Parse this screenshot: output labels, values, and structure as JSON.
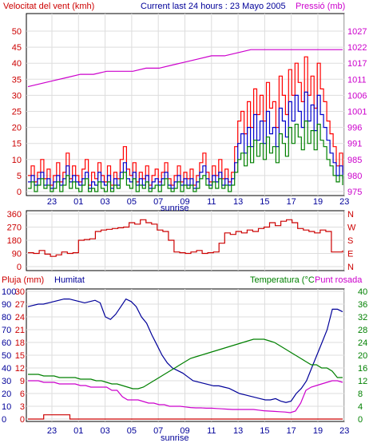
{
  "header": {
    "left_title": "Velocitat del vent (kmh)",
    "center_title": "Current last 24 hours : 23 Mayo 2005",
    "right_title": "Pressió (mb)"
  },
  "sunrise_label": "sunrise",
  "x_tick_labels": [
    "23",
    "01",
    "03",
    "05",
    "07",
    "09",
    "11",
    "13",
    "15",
    "17",
    "19",
    "23"
  ],
  "colors": {
    "wind_speed": "#ff0000",
    "wind_gust_blue": "#0000cc",
    "wind_green": "#008000",
    "pressure": "#cc00cc",
    "wind_dir": "#cc0000",
    "rain": "#cc0000",
    "humidity": "#000099",
    "temperature": "#008000",
    "dewpoint": "#cc00cc",
    "grid": "#dddddd"
  },
  "chart_data": [
    {
      "type": "line",
      "title": "",
      "left_axis_label": "Velocitat del vent (kmh)",
      "right_axis_label": "Pressió (mb)",
      "left_ticks": [
        "50",
        "45",
        "40",
        "35",
        "30",
        "25",
        "20",
        "15",
        "10",
        "5",
        "0"
      ],
      "right_ticks": [
        "1027",
        "1022",
        "1017",
        "1011",
        "1006",
        "1001",
        "996",
        "991",
        "985",
        "980",
        "975"
      ],
      "ylim": [
        0,
        50
      ],
      "pressure_lim": [
        975,
        1027
      ],
      "series": [
        {
          "name": "",
          "values": [
            5,
            8,
            3,
            6,
            10,
            4,
            7,
            2,
            5,
            9,
            3,
            6,
            12,
            4,
            8,
            5,
            3,
            7,
            10,
            2,
            6,
            4,
            9,
            5,
            3,
            8,
            2,
            6,
            4,
            10,
            14,
            7,
            5,
            9,
            3,
            6,
            4,
            8,
            2,
            5,
            7,
            3,
            6,
            9,
            4,
            2,
            5,
            8,
            3,
            6,
            4,
            7,
            2,
            5,
            9,
            12,
            6,
            3,
            8,
            5,
            10,
            4,
            7,
            3,
            6,
            14,
            22,
            25,
            18,
            28,
            20,
            32,
            24,
            30,
            22,
            34,
            26,
            28,
            20,
            36,
            30,
            24,
            38,
            30,
            40,
            34,
            28,
            42,
            30,
            36,
            26,
            40,
            32,
            28,
            22,
            18,
            14,
            8,
            12,
            6
          ]
        },
        {
          "name": "",
          "values": [
            3,
            5,
            2,
            4,
            6,
            2,
            4,
            1,
            3,
            5,
            2,
            4,
            8,
            3,
            5,
            3,
            2,
            4,
            6,
            1,
            3,
            2,
            6,
            3,
            2,
            5,
            1,
            4,
            2,
            6,
            9,
            4,
            3,
            6,
            2,
            4,
            2,
            5,
            1,
            3,
            4,
            2,
            4,
            6,
            2,
            1,
            3,
            5,
            2,
            4,
            2,
            4,
            1,
            3,
            6,
            8,
            4,
            2,
            5,
            3,
            6,
            2,
            4,
            2,
            4,
            9,
            15,
            18,
            12,
            20,
            14,
            24,
            16,
            22,
            15,
            25,
            18,
            20,
            14,
            26,
            22,
            17,
            28,
            22,
            30,
            25,
            20,
            31,
            22,
            27,
            19,
            30,
            24,
            20,
            16,
            12,
            9,
            5,
            8,
            4
          ]
        },
        {
          "name": "",
          "values": [
            1,
            3,
            0,
            2,
            4,
            1,
            2,
            0,
            1,
            3,
            0,
            2,
            5,
            1,
            3,
            1,
            0,
            2,
            4,
            0,
            1,
            0,
            3,
            1,
            0,
            3,
            0,
            2,
            1,
            4,
            6,
            2,
            1,
            4,
            0,
            2,
            1,
            3,
            0,
            1,
            2,
            0,
            2,
            4,
            1,
            0,
            1,
            3,
            0,
            2,
            1,
            2,
            0,
            1,
            4,
            5,
            2,
            1,
            3,
            1,
            4,
            1,
            2,
            0,
            2,
            6,
            10,
            12,
            8,
            14,
            9,
            16,
            11,
            15,
            10,
            17,
            12,
            14,
            9,
            18,
            15,
            11,
            20,
            15,
            21,
            17,
            13,
            22,
            15,
            19,
            13,
            21,
            16,
            14,
            10,
            8,
            5,
            3,
            5,
            2
          ]
        },
        {
          "name": "",
          "values": [
            1009,
            1010,
            1011,
            1012,
            1013,
            1013,
            1014,
            1014,
            1014,
            1015,
            1015,
            1016,
            1017,
            1018,
            1019,
            1019,
            1020,
            1021,
            1021,
            1021,
            1021,
            1021,
            1021,
            1021,
            1021
          ]
        }
      ]
    },
    {
      "type": "line",
      "title": "",
      "left_ticks": [
        "360",
        "270",
        "180",
        "90",
        "0"
      ],
      "right_ticks": [
        "N",
        "W",
        "S",
        "E",
        "N"
      ],
      "ylim": [
        0,
        360
      ],
      "series": [
        {
          "name": "",
          "values": [
            95,
            90,
            110,
            85,
            70,
            80,
            100,
            90,
            95,
            180,
            185,
            190,
            240,
            250,
            255,
            260,
            265,
            270,
            300,
            290,
            320,
            300,
            290,
            250,
            240,
            180,
            100,
            95,
            90,
            100,
            110,
            90,
            95,
            100,
            160,
            230,
            220,
            240,
            230,
            250,
            240,
            260,
            270,
            300,
            280,
            310,
            320,
            300,
            260,
            250,
            240,
            230,
            250,
            240,
            100,
            100,
            110
          ]
        }
      ]
    },
    {
      "type": "line",
      "title": "",
      "labels": {
        "rain": "Pluja (mm)",
        "humidity": "Humitat",
        "temperature": "Temperatura (°C",
        "dewpoint": "Punt rosada"
      },
      "rain_ticks": [
        "100",
        "90",
        "80",
        "70",
        "60",
        "50",
        "40",
        "30",
        "20",
        "10",
        "0"
      ],
      "humidity_ticks": [
        "30",
        "27",
        "24",
        "21",
        "18",
        "15",
        "12",
        "9",
        "6",
        "3",
        "0"
      ],
      "temp_ticks": [
        "40",
        "36",
        "32",
        "28",
        "24",
        "20",
        "16",
        "12",
        "8",
        "4",
        "0"
      ],
      "series": [
        {
          "name": "Humitat",
          "values": [
            88,
            89,
            90,
            90,
            91,
            92,
            93,
            94,
            94,
            93,
            92,
            91,
            92,
            93,
            91,
            80,
            78,
            82,
            88,
            94,
            92,
            88,
            80,
            75,
            66,
            58,
            50,
            44,
            40,
            38,
            36,
            33,
            30,
            29,
            28,
            27,
            26,
            26,
            25,
            24,
            22,
            20,
            19,
            18,
            17,
            16,
            15,
            15,
            16,
            14,
            13,
            14,
            20,
            24,
            30,
            40,
            50,
            60,
            70,
            86,
            86,
            84
          ]
        },
        {
          "name": "Temperatura (°C",
          "values": [
            14,
            14,
            14,
            13.5,
            13.5,
            13.5,
            13,
            13,
            13,
            13,
            12.5,
            12.5,
            12.5,
            12,
            12,
            11.5,
            11,
            11,
            10.5,
            10,
            9.5,
            9.5,
            10,
            11,
            12,
            13,
            14,
            15,
            16,
            17,
            18,
            19,
            19.5,
            20,
            20.5,
            21,
            21.5,
            22,
            22.5,
            23,
            23.5,
            24,
            24.5,
            25,
            25,
            25,
            24.5,
            24,
            23,
            22,
            21,
            20,
            19,
            18,
            17,
            17,
            16,
            16,
            15,
            13,
            13
          ]
        },
        {
          "name": "Punt rosada",
          "values": [
            12,
            12,
            12,
            11.5,
            11.5,
            11.5,
            11,
            11,
            11,
            11,
            10.5,
            10.5,
            10,
            10,
            10,
            10,
            9,
            9,
            7,
            6,
            6,
            6,
            5.5,
            5,
            5,
            4.5,
            4.5,
            4,
            4,
            4,
            3.8,
            3.6,
            3.5,
            3.5,
            3.4,
            3.4,
            3.3,
            3.2,
            3.1,
            3,
            3,
            3,
            3,
            3,
            2.8,
            2.6,
            2.5,
            2.4,
            2.3,
            2.2,
            2,
            2.5,
            5,
            9,
            10,
            10.5,
            11,
            11.5,
            12,
            12,
            11.5
          ]
        },
        {
          "name": "Pluja (mm)",
          "values": [
            0,
            0,
            0,
            1,
            1,
            1,
            1,
            1,
            0,
            0,
            0,
            0,
            0,
            0,
            0,
            0,
            0,
            0,
            0,
            0,
            0,
            0,
            0,
            0,
            0,
            0,
            0,
            0,
            0,
            0,
            0,
            0,
            0,
            0,
            0,
            0,
            0,
            0,
            0,
            0,
            0,
            0,
            0,
            0,
            0,
            0,
            0,
            0,
            0,
            0,
            0,
            0,
            0,
            0,
            0,
            0,
            0,
            0,
            0,
            0,
            0
          ]
        }
      ]
    }
  ]
}
